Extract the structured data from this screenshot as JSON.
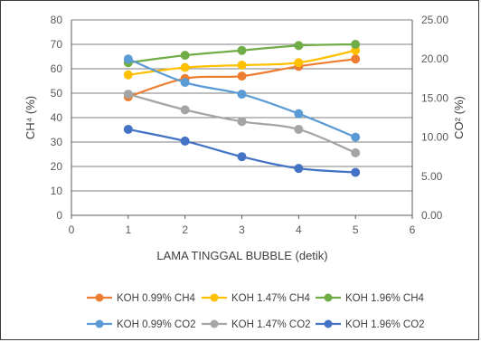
{
  "chart_data": {
    "type": "line",
    "xlabel": "LAMA TINGGAL BUBBLE (detik)",
    "ylabel": "CH⁴ (%)",
    "y2label": "CO² (%)",
    "x_ticks": [
      "0",
      "1",
      "2",
      "3",
      "4",
      "5",
      "6"
    ],
    "y_ticks": [
      "0",
      "10",
      "20",
      "30",
      "40",
      "50",
      "60",
      "70",
      "80"
    ],
    "y2_ticks": [
      "0.00",
      "5.00",
      "10.00",
      "15.00",
      "20.00",
      "25.00"
    ],
    "xlim": [
      0,
      6
    ],
    "ylim": [
      0,
      80
    ],
    "y2lim": [
      0,
      25
    ],
    "grid": "horizontal",
    "legend_position": "bottom",
    "x": [
      1,
      2,
      3,
      4,
      5
    ],
    "series": [
      {
        "name": "KOH 0.99% CH4",
        "axis": "left",
        "color": "#ED7D31",
        "values": [
          48.5,
          56,
          57,
          61,
          64
        ]
      },
      {
        "name": "KOH 1.47% CH4",
        "axis": "left",
        "color": "#FFC000",
        "values": [
          57.5,
          60.5,
          61.5,
          62.5,
          67.5
        ]
      },
      {
        "name": "KOH 1.96% CH4",
        "axis": "left",
        "color": "#70AD47",
        "values": [
          62.5,
          65.5,
          67.5,
          69.5,
          70
        ]
      },
      {
        "name": "KOH 0.99% CO2",
        "axis": "right",
        "color": "#5B9BD5",
        "values": [
          20.0,
          17.0,
          15.5,
          13.0,
          10.0
        ]
      },
      {
        "name": "KOH 1.47% CO2",
        "axis": "right",
        "color": "#A5A5A5",
        "values": [
          15.5,
          13.5,
          12.0,
          11.0,
          8.0
        ]
      },
      {
        "name": "KOH 1.96% CO2",
        "axis": "right",
        "color": "#4472C4",
        "values": [
          11.0,
          9.5,
          7.5,
          6.0,
          5.5
        ]
      }
    ]
  }
}
